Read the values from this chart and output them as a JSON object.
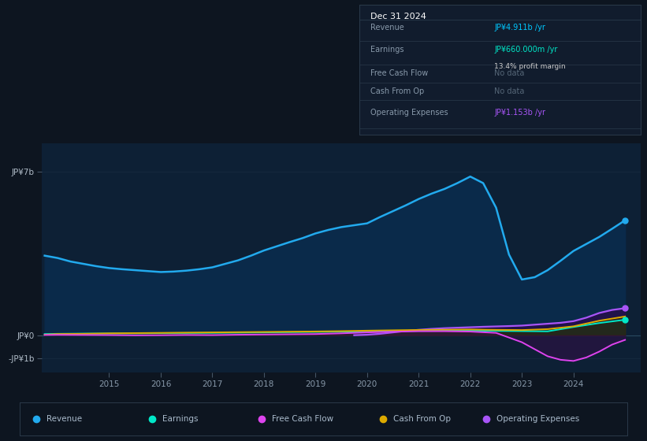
{
  "bg_color": "#0d1520",
  "plot_bg_color": "#0d2035",
  "grid_color": "#1a3045",
  "title_box_bg": "#111c2d",
  "title_box_border": "#2a3a4a",
  "y_labels": [
    "JP¥7b",
    "JP¥0",
    "-JP¥1b"
  ],
  "y_ticks": [
    7000000000,
    0,
    -1000000000
  ],
  "ylim": [
    -1600000000,
    8200000000
  ],
  "xlim_start": 2013.7,
  "xlim_end": 2025.3,
  "x_ticks": [
    2015,
    2016,
    2017,
    2018,
    2019,
    2020,
    2021,
    2022,
    2023,
    2024
  ],
  "info_date": "Dec 31 2024",
  "info_rows": [
    {
      "label": "Revenue",
      "value": "JP¥4.911b /yr",
      "value_color": "#00c8ff",
      "sub": null
    },
    {
      "label": "Earnings",
      "value": "JP¥660.000m /yr",
      "value_color": "#00e8c8",
      "sub": "13.4% profit margin"
    },
    {
      "label": "Free Cash Flow",
      "value": "No data",
      "value_color": "#556677",
      "sub": null
    },
    {
      "label": "Cash From Op",
      "value": "No data",
      "value_color": "#556677",
      "sub": null
    },
    {
      "label": "Operating Expenses",
      "value": "JP¥1.153b /yr",
      "value_color": "#a855f7",
      "sub": null
    }
  ],
  "legend_items": [
    {
      "label": "Revenue",
      "color": "#22aaee"
    },
    {
      "label": "Earnings",
      "color": "#00e8c8"
    },
    {
      "label": "Free Cash Flow",
      "color": "#dd44ee"
    },
    {
      "label": "Cash From Op",
      "color": "#ddaa00"
    },
    {
      "label": "Operating Expenses",
      "color": "#a855f7"
    }
  ],
  "revenue_x": [
    2013.75,
    2014.0,
    2014.25,
    2014.5,
    2014.75,
    2015.0,
    2015.25,
    2015.5,
    2015.75,
    2016.0,
    2016.25,
    2016.5,
    2016.75,
    2017.0,
    2017.25,
    2017.5,
    2017.75,
    2018.0,
    2018.25,
    2018.5,
    2018.75,
    2019.0,
    2019.25,
    2019.5,
    2019.75,
    2020.0,
    2020.25,
    2020.5,
    2020.75,
    2021.0,
    2021.25,
    2021.5,
    2021.75,
    2022.0,
    2022.25,
    2022.5,
    2022.75,
    2023.0,
    2023.25,
    2023.5,
    2023.75,
    2024.0,
    2024.25,
    2024.5,
    2024.75,
    2025.0
  ],
  "revenue_y": [
    3400,
    3300,
    3150,
    3050,
    2950,
    2870,
    2820,
    2780,
    2740,
    2700,
    2720,
    2760,
    2820,
    2900,
    3050,
    3200,
    3400,
    3620,
    3800,
    3980,
    4150,
    4350,
    4500,
    4620,
    4700,
    4780,
    5050,
    5300,
    5550,
    5820,
    6050,
    6250,
    6500,
    6780,
    6500,
    5450,
    3450,
    2380,
    2480,
    2780,
    3180,
    3600,
    3900,
    4200,
    4550,
    4910
  ],
  "earnings_x": [
    2013.75,
    2014.0,
    2014.5,
    2015.0,
    2015.5,
    2016.0,
    2016.5,
    2017.0,
    2017.5,
    2018.0,
    2018.5,
    2019.0,
    2019.5,
    2020.0,
    2020.5,
    2021.0,
    2021.5,
    2022.0,
    2022.5,
    2023.0,
    2023.5,
    2024.0,
    2024.5,
    2025.0
  ],
  "earnings_y": [
    50,
    60,
    70,
    75,
    80,
    90,
    95,
    100,
    110,
    120,
    130,
    140,
    150,
    160,
    170,
    185,
    190,
    195,
    185,
    175,
    165,
    350,
    520,
    660
  ],
  "fcf_x": [
    2013.75,
    2014.0,
    2014.5,
    2015.0,
    2015.5,
    2016.0,
    2016.5,
    2017.0,
    2017.5,
    2018.0,
    2018.5,
    2019.0,
    2019.5,
    2020.0,
    2020.5,
    2021.0,
    2021.5,
    2022.0,
    2022.5,
    2023.0,
    2023.25,
    2023.5,
    2023.75,
    2024.0,
    2024.25,
    2024.5,
    2024.75,
    2025.0
  ],
  "fcf_y": [
    10,
    15,
    10,
    5,
    -5,
    0,
    10,
    5,
    20,
    30,
    40,
    50,
    80,
    120,
    150,
    170,
    170,
    155,
    100,
    -300,
    -600,
    -900,
    -1050,
    -1100,
    -950,
    -700,
    -400,
    -200
  ],
  "cfo_x": [
    2013.75,
    2014.0,
    2014.5,
    2015.0,
    2015.5,
    2016.0,
    2016.5,
    2017.0,
    2017.5,
    2018.0,
    2018.5,
    2019.0,
    2019.5,
    2020.0,
    2020.5,
    2021.0,
    2021.5,
    2022.0,
    2022.5,
    2023.0,
    2023.5,
    2024.0,
    2024.5,
    2025.0
  ],
  "cfo_y": [
    20,
    50,
    60,
    80,
    90,
    100,
    110,
    120,
    130,
    140,
    150,
    160,
    175,
    195,
    210,
    225,
    235,
    245,
    230,
    220,
    260,
    380,
    620,
    800
  ],
  "opex_x": [
    2019.75,
    2020.0,
    2020.25,
    2020.5,
    2020.75,
    2021.0,
    2021.25,
    2021.5,
    2021.75,
    2022.0,
    2022.25,
    2022.5,
    2022.75,
    2023.0,
    2023.25,
    2023.5,
    2023.75,
    2024.0,
    2024.25,
    2024.5,
    2024.75,
    2025.0
  ],
  "opex_y": [
    0,
    20,
    60,
    120,
    180,
    230,
    270,
    300,
    320,
    340,
    360,
    375,
    390,
    410,
    450,
    490,
    530,
    600,
    750,
    950,
    1080,
    1153
  ]
}
